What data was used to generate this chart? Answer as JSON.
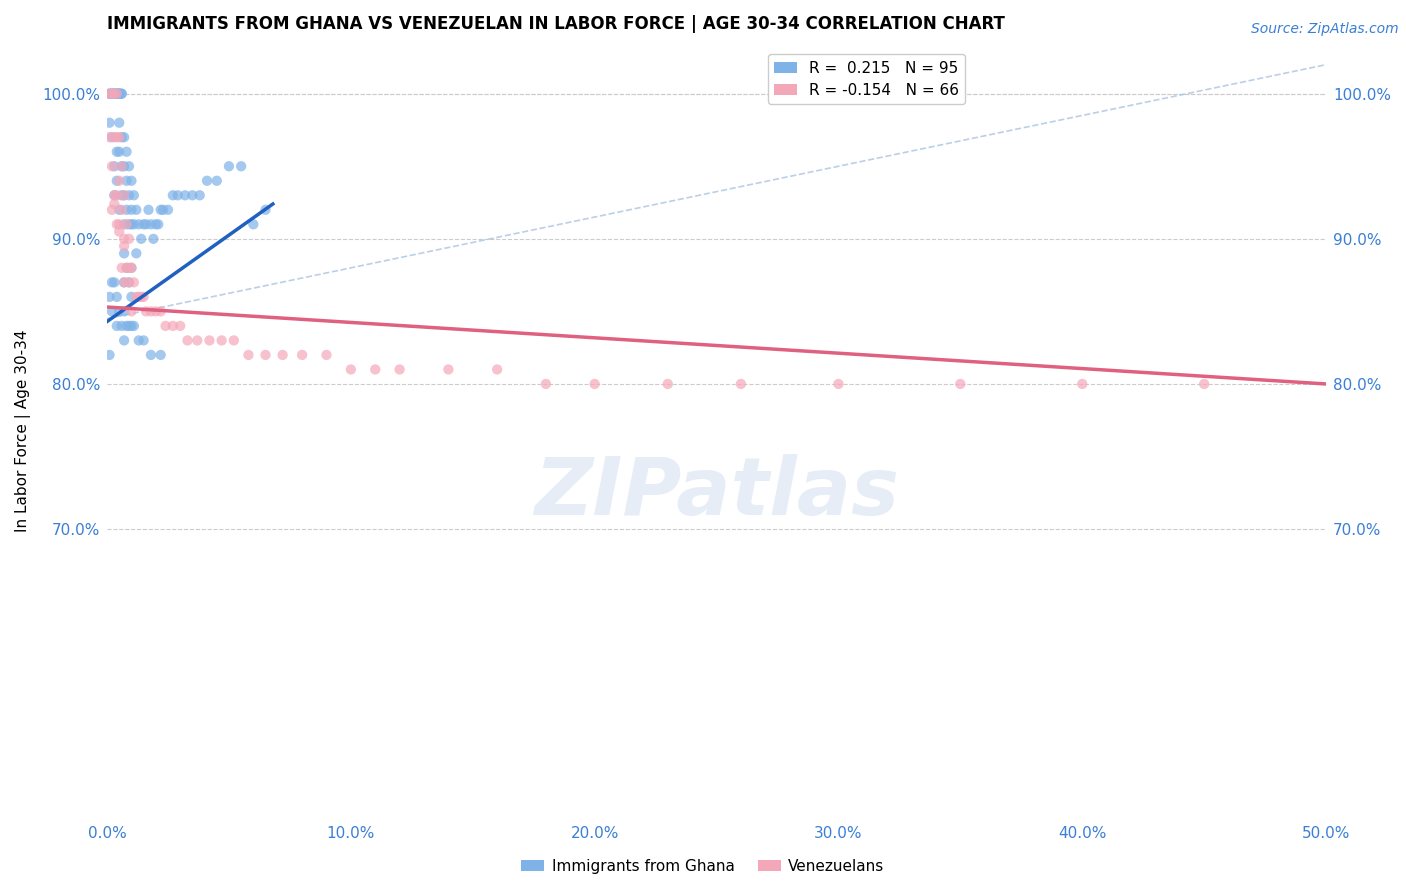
{
  "title": "IMMIGRANTS FROM GHANA VS VENEZUELAN IN LABOR FORCE | AGE 30-34 CORRELATION CHART",
  "source": "Source: ZipAtlas.com",
  "ylabel": "In Labor Force | Age 30-34",
  "xlim": [
    0.0,
    0.5
  ],
  "ylim": [
    0.5,
    1.035
  ],
  "yticks": [
    0.7,
    0.8,
    0.9,
    1.0
  ],
  "ytick_labels": [
    "70.0%",
    "80.0%",
    "90.0%",
    "100.0%"
  ],
  "xticks": [
    0.0,
    0.1,
    0.2,
    0.3,
    0.4,
    0.5
  ],
  "xtick_labels": [
    "0.0%",
    "10.0%",
    "20.0%",
    "30.0%",
    "40.0%",
    "50.0%"
  ],
  "legend_labels": [
    "Immigrants from Ghana",
    "Venezuelans"
  ],
  "ghana_R": 0.215,
  "ghana_N": 95,
  "venezuela_R": -0.154,
  "venezuela_N": 66,
  "ghana_color": "#7fb3e8",
  "venezuela_color": "#f4a7b9",
  "ghana_line_color": "#2060c0",
  "venezuela_line_color": "#e06080",
  "diag_line_color": "#aac4e0",
  "watermark": "ZIPatlas",
  "ghana_line_x0": 0.0,
  "ghana_line_y0": 0.843,
  "ghana_line_x1": 0.068,
  "ghana_line_y1": 0.924,
  "venezuela_line_x0": 0.0,
  "venezuela_line_y0": 0.853,
  "venezuela_line_x1": 0.5,
  "venezuela_line_y1": 0.8,
  "diag_line_x0": 0.0,
  "diag_line_y0": 0.845,
  "diag_line_x1": 0.5,
  "diag_line_y1": 1.02,
  "ghana_x": [
    0.001,
    0.001,
    0.001,
    0.002,
    0.002,
    0.002,
    0.002,
    0.003,
    0.003,
    0.003,
    0.003,
    0.003,
    0.004,
    0.004,
    0.004,
    0.004,
    0.004,
    0.004,
    0.005,
    0.005,
    0.005,
    0.005,
    0.005,
    0.005,
    0.005,
    0.006,
    0.006,
    0.006,
    0.006,
    0.006,
    0.007,
    0.007,
    0.007,
    0.007,
    0.007,
    0.007,
    0.008,
    0.008,
    0.008,
    0.008,
    0.009,
    0.009,
    0.009,
    0.009,
    0.01,
    0.01,
    0.01,
    0.01,
    0.01,
    0.011,
    0.011,
    0.012,
    0.012,
    0.013,
    0.014,
    0.015,
    0.016,
    0.017,
    0.018,
    0.019,
    0.02,
    0.021,
    0.022,
    0.023,
    0.025,
    0.027,
    0.029,
    0.032,
    0.035,
    0.038,
    0.041,
    0.045,
    0.05,
    0.055,
    0.06,
    0.065,
    0.001,
    0.001,
    0.002,
    0.002,
    0.003,
    0.004,
    0.004,
    0.005,
    0.006,
    0.007,
    0.007,
    0.008,
    0.009,
    0.01,
    0.011,
    0.013,
    0.015,
    0.018,
    0.022
  ],
  "ghana_y": [
    1.0,
    1.0,
    0.98,
    1.0,
    1.0,
    1.0,
    0.97,
    1.0,
    1.0,
    1.0,
    0.95,
    0.93,
    1.0,
    1.0,
    1.0,
    1.0,
    0.96,
    0.94,
    1.0,
    1.0,
    1.0,
    1.0,
    0.98,
    0.96,
    0.92,
    1.0,
    1.0,
    0.97,
    0.95,
    0.93,
    0.97,
    0.95,
    0.93,
    0.91,
    0.89,
    0.87,
    0.96,
    0.94,
    0.92,
    0.88,
    0.95,
    0.93,
    0.91,
    0.87,
    0.94,
    0.92,
    0.91,
    0.88,
    0.86,
    0.93,
    0.91,
    0.92,
    0.89,
    0.91,
    0.9,
    0.91,
    0.91,
    0.92,
    0.91,
    0.9,
    0.91,
    0.91,
    0.92,
    0.92,
    0.92,
    0.93,
    0.93,
    0.93,
    0.93,
    0.93,
    0.94,
    0.94,
    0.95,
    0.95,
    0.91,
    0.92,
    0.86,
    0.82,
    0.87,
    0.85,
    0.87,
    0.86,
    0.84,
    0.85,
    0.84,
    0.85,
    0.83,
    0.84,
    0.84,
    0.84,
    0.84,
    0.83,
    0.83,
    0.82,
    0.82
  ],
  "venezuela_x": [
    0.001,
    0.001,
    0.002,
    0.002,
    0.003,
    0.003,
    0.003,
    0.004,
    0.004,
    0.004,
    0.005,
    0.005,
    0.005,
    0.006,
    0.006,
    0.006,
    0.007,
    0.007,
    0.007,
    0.008,
    0.008,
    0.009,
    0.009,
    0.01,
    0.01,
    0.011,
    0.012,
    0.013,
    0.014,
    0.015,
    0.016,
    0.018,
    0.02,
    0.022,
    0.024,
    0.027,
    0.03,
    0.033,
    0.037,
    0.042,
    0.047,
    0.052,
    0.058,
    0.065,
    0.072,
    0.08,
    0.09,
    0.1,
    0.11,
    0.12,
    0.14,
    0.16,
    0.18,
    0.2,
    0.23,
    0.26,
    0.3,
    0.35,
    0.4,
    0.45,
    0.002,
    0.003,
    0.004,
    0.005,
    0.007,
    0.009
  ],
  "venezuela_y": [
    1.0,
    0.97,
    1.0,
    0.95,
    1.0,
    0.97,
    0.93,
    1.0,
    0.97,
    0.93,
    0.97,
    0.94,
    0.91,
    0.95,
    0.92,
    0.88,
    0.93,
    0.9,
    0.87,
    0.91,
    0.88,
    0.9,
    0.87,
    0.88,
    0.85,
    0.87,
    0.86,
    0.86,
    0.86,
    0.86,
    0.85,
    0.85,
    0.85,
    0.85,
    0.84,
    0.84,
    0.84,
    0.83,
    0.83,
    0.83,
    0.83,
    0.83,
    0.82,
    0.82,
    0.82,
    0.82,
    0.82,
    0.81,
    0.81,
    0.81,
    0.81,
    0.81,
    0.8,
    0.8,
    0.8,
    0.8,
    0.8,
    0.8,
    0.8,
    0.8,
    0.92,
    0.924,
    0.91,
    0.905,
    0.895,
    0.88
  ]
}
